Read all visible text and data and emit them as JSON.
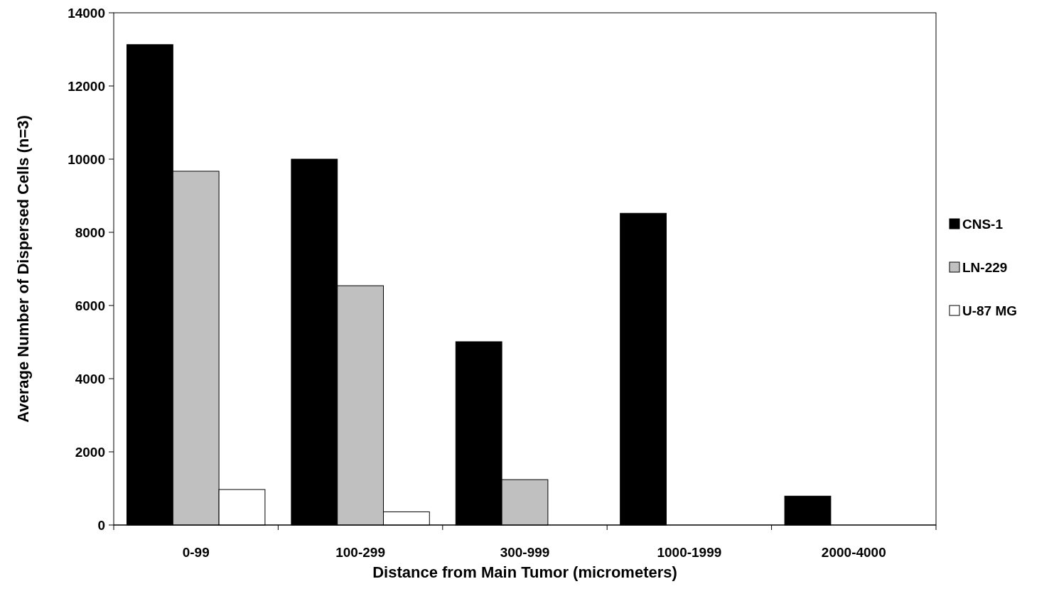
{
  "chart_data": {
    "type": "bar",
    "xlabel": "Distance from Main Tumor (micrometers)",
    "ylabel": "Average Number of Dispersed Cells (n=3)",
    "categories": [
      "0-99",
      "100-299",
      "300-999",
      "1000-1999",
      "2000-4000"
    ],
    "series": [
      {
        "name": "CNS-1",
        "color": "#000000",
        "values": [
          13130,
          10000,
          5010,
          8520,
          790
        ]
      },
      {
        "name": "LN-229",
        "color": "#c0c0c0",
        "values": [
          9670,
          6540,
          1240,
          0,
          0
        ]
      },
      {
        "name": "U-87 MG",
        "color": "#ffffff",
        "values": [
          970,
          360,
          null,
          0,
          0
        ]
      }
    ],
    "ylim": [
      0,
      14000
    ],
    "yticks": [
      0,
      2000,
      4000,
      6000,
      8000,
      10000,
      12000,
      14000
    ],
    "grid": false,
    "legend": "right"
  }
}
